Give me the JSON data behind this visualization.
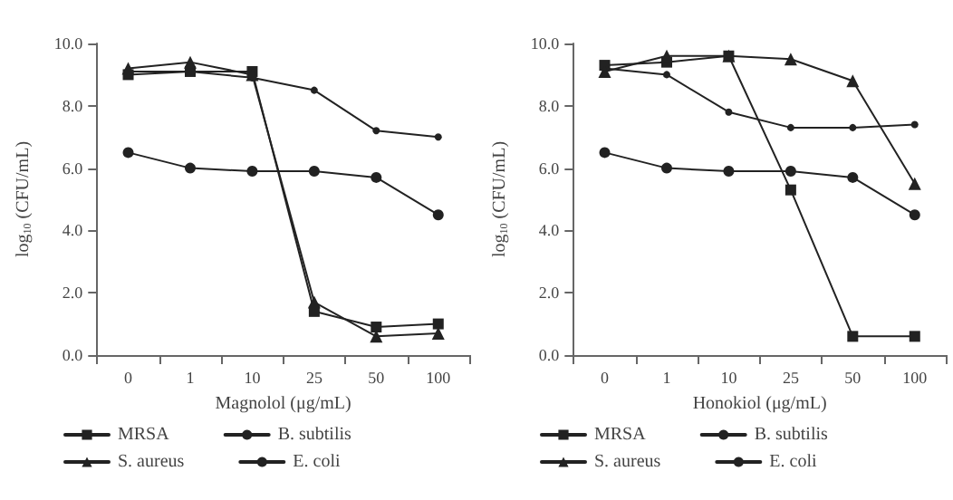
{
  "chart_data": [
    {
      "type": "line",
      "xlabel": "Magnolol (μg/mL)",
      "ylabel": "log$_{10}$ (CFU/mL)",
      "categories": [
        "0",
        "1",
        "10",
        "25",
        "50",
        "100"
      ],
      "ylim": [
        0,
        10
      ],
      "yticks": [
        {
          "value": 0,
          "label": "0.0"
        },
        {
          "value": 2,
          "label": "2.0"
        },
        {
          "value": 4,
          "label": "4.0"
        },
        {
          "value": 6,
          "label": "6.0"
        },
        {
          "value": 8,
          "label": "8.0"
        },
        {
          "value": 10,
          "label": "10.0"
        }
      ],
      "grid": false,
      "legend": "bottom",
      "line_style": "solid",
      "series": [
        {
          "name": "MRSA",
          "color": "#222222",
          "marker": "square",
          "values": [
            9.0,
            9.1,
            9.1,
            1.4,
            0.9,
            1.0
          ]
        },
        {
          "name": "B. subtilis",
          "color": "#222222",
          "marker": "circle",
          "values": [
            6.5,
            6.0,
            5.9,
            5.9,
            5.7,
            4.5
          ]
        },
        {
          "name": "S. aureus",
          "color": "#222222",
          "marker": "triangle",
          "values": [
            9.2,
            9.4,
            9.0,
            1.7,
            0.6,
            0.7
          ]
        },
        {
          "name": "E. coli",
          "color": "#222222",
          "marker": "circle",
          "values": [
            9.1,
            9.1,
            8.9,
            8.5,
            7.2,
            7.0
          ]
        }
      ]
    },
    {
      "type": "line",
      "xlabel": "Honokiol (μg/mL)",
      "ylabel": "log$_{10}$ (CFU/mL)",
      "categories": [
        "0",
        "1",
        "10",
        "25",
        "50",
        "100"
      ],
      "ylim": [
        0,
        10
      ],
      "yticks": [
        {
          "value": 0,
          "label": "0.0"
        },
        {
          "value": 2,
          "label": "2.0"
        },
        {
          "value": 4,
          "label": "4.0"
        },
        {
          "value": 6,
          "label": "6.0"
        },
        {
          "value": 8,
          "label": "8.0"
        },
        {
          "value": 10,
          "label": "10.0"
        }
      ],
      "grid": false,
      "legend": "bottom",
      "line_style": "solid",
      "series": [
        {
          "name": "MRSA",
          "color": "#222222",
          "marker": "square",
          "values": [
            9.3,
            9.4,
            9.6,
            5.3,
            0.6,
            0.6
          ]
        },
        {
          "name": "B. subtilis",
          "color": "#222222",
          "marker": "circle",
          "values": [
            6.5,
            6.0,
            5.9,
            5.9,
            5.7,
            4.5
          ]
        },
        {
          "name": "S. aureus",
          "color": "#222222",
          "marker": "triangle",
          "values": [
            9.1,
            9.6,
            9.6,
            9.5,
            8.8,
            5.5
          ]
        },
        {
          "name": "E. coli",
          "color": "#222222",
          "marker": "circle",
          "values": [
            9.2,
            9.0,
            7.8,
            7.3,
            7.3,
            7.4
          ]
        }
      ]
    }
  ]
}
